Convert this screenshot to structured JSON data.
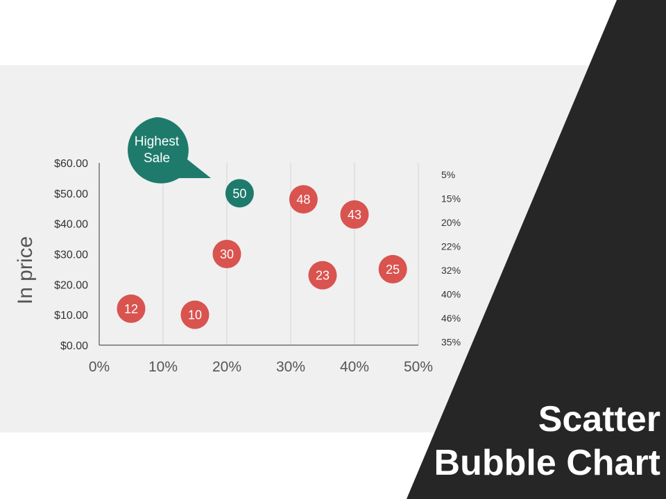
{
  "slide": {
    "title_line1": "Scatter",
    "title_line2": "Bubble Chart"
  },
  "colors": {
    "band": "#f0f0f0",
    "panel": "#262626",
    "bubble_red": "#d9534f",
    "bubble_teal": "#1e7b6c",
    "grid": "#d3d3d3",
    "axis": "#555555"
  },
  "chart_data": {
    "type": "scatter",
    "title": "",
    "xlabel": "",
    "ylabel": "In price",
    "xlim": [
      0,
      50
    ],
    "ylim": [
      0,
      60
    ],
    "x_ticks": [
      "0%",
      "10%",
      "20%",
      "30%",
      "40%",
      "50%"
    ],
    "y_ticks": [
      "$0.00",
      "$10.00",
      "$20.00",
      "$30.00",
      "$40.00",
      "$50.00",
      "$60.00"
    ],
    "grid": "vertical",
    "points": [
      {
        "x": 5,
        "y": 12,
        "label": "12",
        "highlight": false
      },
      {
        "x": 15,
        "y": 10,
        "label": "10",
        "highlight": false
      },
      {
        "x": 20,
        "y": 30,
        "label": "30",
        "highlight": false
      },
      {
        "x": 22,
        "y": 50,
        "label": "50",
        "highlight": true
      },
      {
        "x": 32,
        "y": 48,
        "label": "48",
        "highlight": false
      },
      {
        "x": 35,
        "y": 23,
        "label": "23",
        "highlight": false
      },
      {
        "x": 40,
        "y": 43,
        "label": "43",
        "highlight": false
      },
      {
        "x": 46,
        "y": 25,
        "label": "25",
        "highlight": false
      }
    ],
    "right_labels": [
      "5%",
      "15%",
      "20%",
      "22%",
      "32%",
      "40%",
      "46%",
      "35%"
    ],
    "callout": {
      "line1": "Highest",
      "line2": "Sale"
    }
  }
}
